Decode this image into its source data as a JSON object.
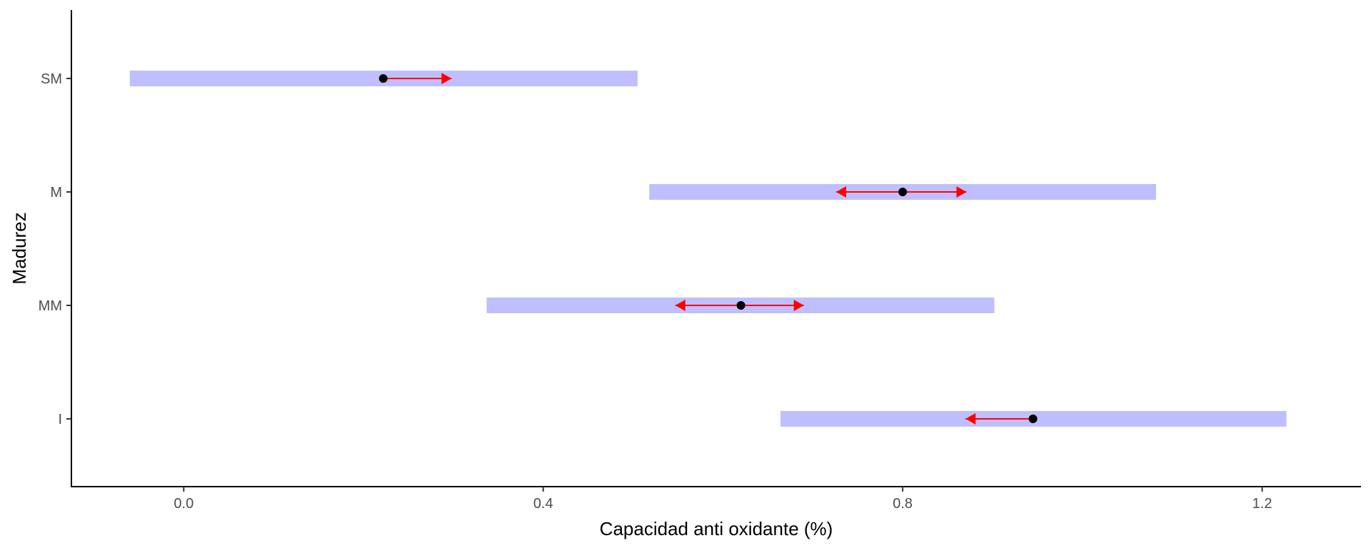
{
  "chart_data": {
    "type": "interval",
    "xlabel": "Capacidad anti oxidante (%)",
    "ylabel": "Madurez",
    "xlim": [
      -0.125,
      1.31
    ],
    "x_ticks": [
      "0.0",
      "0.4",
      "0.8",
      "1.2"
    ],
    "x_tick_values": [
      0.0,
      0.4,
      0.8,
      1.2
    ],
    "categories": [
      "SM",
      "M",
      "MM",
      "I"
    ],
    "rows": [
      {
        "category": "SM",
        "lower": -0.06,
        "upper": 0.505,
        "mean": 0.222,
        "arrow_lower": 0.222,
        "arrow_upper": 0.298
      },
      {
        "category": "M",
        "lower": 0.518,
        "upper": 1.082,
        "mean": 0.8,
        "arrow_lower": 0.726,
        "arrow_upper": 0.871
      },
      {
        "category": "MM",
        "lower": 0.337,
        "upper": 0.902,
        "mean": 0.62,
        "arrow_lower": 0.547,
        "arrow_upper": 0.69
      },
      {
        "category": "I",
        "lower": 0.664,
        "upper": 1.227,
        "mean": 0.945,
        "arrow_lower": 0.87,
        "arrow_upper": 0.945
      }
    ],
    "colors": {
      "interval": "#bfbfff",
      "arrow": "#ff0000",
      "point": "#000000",
      "axis": "#000000"
    },
    "grid": false,
    "legend": "none"
  }
}
